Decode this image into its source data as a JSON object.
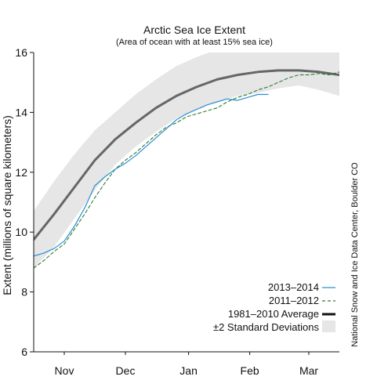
{
  "chart_data": {
    "type": "line",
    "title": "Arctic Sea Ice Extent",
    "subtitle": "(Area of ocean with at least 15% sea ice)",
    "ylabel": "Extent (millions of square kilometers)",
    "ylim": [
      6,
      16
    ],
    "y_ticks": [
      6,
      8,
      10,
      12,
      14,
      16
    ],
    "x_range_day": [
      0,
      150
    ],
    "months": [
      {
        "label": "Nov",
        "day": 15
      },
      {
        "label": "Dec",
        "day": 45
      },
      {
        "label": "Jan",
        "day": 76
      },
      {
        "label": "Feb",
        "day": 106
      },
      {
        "label": "Mar",
        "day": 135
      }
    ],
    "credit": "National Snow and Ice Data Center, Boulder CO",
    "footnote": "",
    "std_band": {
      "label": "±2 Standard Deviations",
      "color": "#e6e6e6",
      "x": [
        0,
        10,
        20,
        30,
        40,
        50,
        60,
        70,
        80,
        90,
        100,
        110,
        120,
        130,
        140,
        150
      ],
      "upper": [
        10.7,
        11.7,
        12.6,
        13.4,
        14.0,
        14.6,
        15.1,
        15.55,
        15.85,
        16.1,
        16.25,
        16.3,
        16.3,
        16.25,
        16.15,
        16.05
      ],
      "lower": [
        8.8,
        9.5,
        10.45,
        11.4,
        12.25,
        12.85,
        13.35,
        13.8,
        14.1,
        14.35,
        14.55,
        14.65,
        14.8,
        14.9,
        14.75,
        14.55
      ]
    },
    "series": [
      {
        "name": "1981–2010 Average",
        "style": "solid-thick",
        "color": "#666666",
        "x": [
          0,
          10,
          20,
          30,
          40,
          50,
          60,
          70,
          80,
          90,
          100,
          110,
          120,
          130,
          140,
          150
        ],
        "y": [
          9.75,
          10.6,
          11.5,
          12.4,
          13.1,
          13.65,
          14.15,
          14.55,
          14.85,
          15.1,
          15.25,
          15.35,
          15.4,
          15.4,
          15.35,
          15.25
        ]
      },
      {
        "name": "2011–2012",
        "style": "dashed",
        "color": "#2e7d32",
        "x": [
          0,
          5,
          10,
          15,
          20,
          25,
          30,
          35,
          40,
          45,
          50,
          55,
          60,
          65,
          70,
          75,
          80,
          85,
          90,
          95,
          100,
          105,
          110,
          115,
          120,
          125,
          130,
          135,
          140,
          145,
          150
        ],
        "y": [
          8.8,
          9.05,
          9.35,
          9.6,
          10.1,
          10.6,
          11.15,
          11.65,
          12.1,
          12.4,
          12.65,
          12.95,
          13.25,
          13.5,
          13.65,
          13.85,
          13.95,
          14.05,
          14.15,
          14.35,
          14.5,
          14.6,
          14.75,
          14.85,
          15.0,
          15.15,
          15.25,
          15.25,
          15.3,
          15.25,
          15.35
        ]
      },
      {
        "name": "2013–2014",
        "style": "solid",
        "color": "#2a8fd4",
        "x": [
          0,
          5,
          10,
          15,
          20,
          25,
          30,
          35,
          40,
          45,
          50,
          55,
          60,
          65,
          70,
          75,
          80,
          85,
          90,
          95,
          100,
          105,
          110,
          115
        ],
        "y": [
          9.2,
          9.3,
          9.45,
          9.7,
          10.2,
          10.8,
          11.55,
          11.85,
          12.1,
          12.3,
          12.55,
          12.85,
          13.15,
          13.45,
          13.75,
          13.95,
          14.1,
          14.25,
          14.35,
          14.45,
          14.4,
          14.5,
          14.6,
          14.6
        ]
      }
    ],
    "legend": {
      "placement": "bottom-right",
      "entries": [
        {
          "label": "2013–2014",
          "color": "#2a8fd4",
          "swatch": "line"
        },
        {
          "label": "2011–2012",
          "color": "#2e7d32",
          "swatch": "dashed"
        },
        {
          "label": "1981–2010 Average",
          "color": "#111111",
          "swatch": "thick"
        },
        {
          "label": "±2 Standard Deviations",
          "color": "#111111",
          "swatch": "box"
        }
      ]
    },
    "grid": false
  }
}
